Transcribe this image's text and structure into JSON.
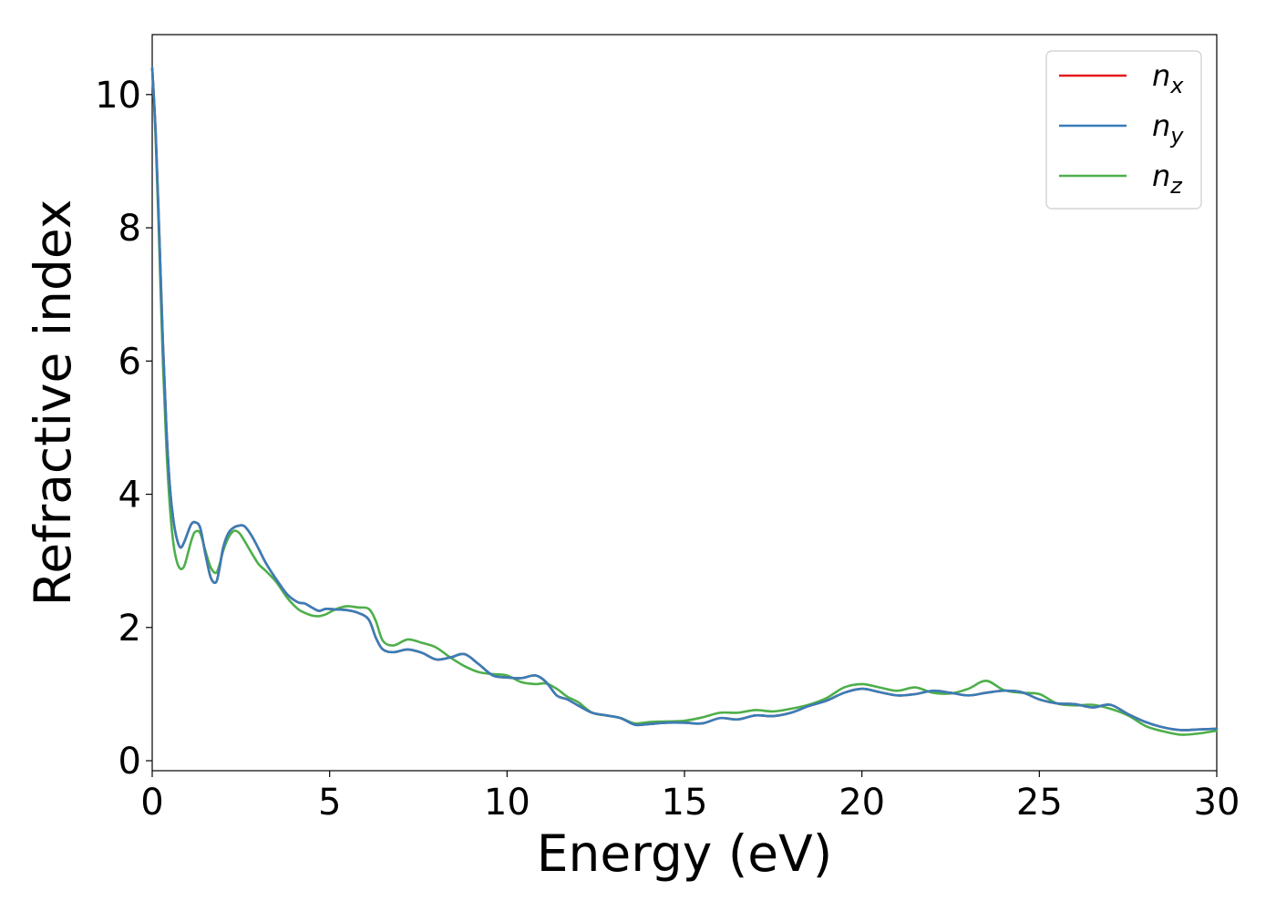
{
  "chart_data": {
    "type": "line",
    "xlabel": "Energy (eV)",
    "ylabel": "Refractive index",
    "xlim": [
      0,
      30
    ],
    "ylim": [
      -0.15,
      10.9
    ],
    "xticks": [
      0,
      5,
      10,
      15,
      20,
      25,
      30
    ],
    "yticks": [
      0,
      2,
      4,
      6,
      8,
      10
    ],
    "grid": false,
    "legend_position": "top-right",
    "legend": [
      {
        "base": "n",
        "sub": "x",
        "color": "#e41a1c"
      },
      {
        "base": "n",
        "sub": "y",
        "color": "#377eb8"
      },
      {
        "base": "n",
        "sub": "z",
        "color": "#4daf4a"
      }
    ],
    "series": [
      {
        "name": "n_x",
        "color": "#e41a1c",
        "x": [
          0,
          0.1,
          0.2,
          0.3,
          0.4,
          0.5,
          0.6,
          0.7,
          0.8,
          0.9,
          1.0,
          1.1,
          1.2,
          1.35,
          1.5,
          1.65,
          1.8,
          1.9,
          2.0,
          2.15,
          2.3,
          2.45,
          2.6,
          2.8,
          3.0,
          3.2,
          3.5,
          3.8,
          4.1,
          4.3,
          4.5,
          4.7,
          4.9,
          5.2,
          5.5,
          5.8,
          6.1,
          6.3,
          6.5,
          6.8,
          7.2,
          7.6,
          8.0,
          8.4,
          8.8,
          9.2,
          9.6,
          10.0,
          10.4,
          10.8,
          11.1,
          11.4,
          11.7,
          12.0,
          12.4,
          12.8,
          13.2,
          13.6,
          14.0,
          14.5,
          15.0,
          15.5,
          16.0,
          16.5,
          17.0,
          17.5,
          18.0,
          18.5,
          19.0,
          19.5,
          20.0,
          20.5,
          21.0,
          21.5,
          22.0,
          22.5,
          23.0,
          23.5,
          24.0,
          24.5,
          25.0,
          25.5,
          26.0,
          26.5,
          27.0,
          27.5,
          28.0,
          28.5,
          29.0,
          29.5,
          30.0
        ],
        "values": [
          10.4,
          9.4,
          7.9,
          6.3,
          5.0,
          4.1,
          3.6,
          3.32,
          3.2,
          3.28,
          3.42,
          3.55,
          3.58,
          3.5,
          3.1,
          2.75,
          2.68,
          2.9,
          3.2,
          3.42,
          3.5,
          3.53,
          3.52,
          3.38,
          3.18,
          2.97,
          2.72,
          2.5,
          2.38,
          2.36,
          2.3,
          2.25,
          2.28,
          2.27,
          2.26,
          2.22,
          2.12,
          1.85,
          1.67,
          1.63,
          1.67,
          1.62,
          1.52,
          1.55,
          1.6,
          1.45,
          1.28,
          1.25,
          1.24,
          1.28,
          1.18,
          0.98,
          0.92,
          0.83,
          0.72,
          0.68,
          0.64,
          0.54,
          0.55,
          0.57,
          0.57,
          0.56,
          0.64,
          0.62,
          0.68,
          0.67,
          0.72,
          0.82,
          0.9,
          1.02,
          1.08,
          1.03,
          0.98,
          1.0,
          1.05,
          1.02,
          0.98,
          1.02,
          1.05,
          1.03,
          0.92,
          0.86,
          0.85,
          0.8,
          0.84,
          0.7,
          0.58,
          0.5,
          0.46,
          0.47,
          0.48
        ]
      },
      {
        "name": "n_y",
        "color": "#377eb8",
        "x": [
          0,
          0.1,
          0.2,
          0.3,
          0.4,
          0.5,
          0.6,
          0.7,
          0.8,
          0.9,
          1.0,
          1.1,
          1.2,
          1.35,
          1.5,
          1.65,
          1.8,
          1.9,
          2.0,
          2.15,
          2.3,
          2.45,
          2.6,
          2.8,
          3.0,
          3.2,
          3.5,
          3.8,
          4.1,
          4.3,
          4.5,
          4.7,
          4.9,
          5.2,
          5.5,
          5.8,
          6.1,
          6.3,
          6.5,
          6.8,
          7.2,
          7.6,
          8.0,
          8.4,
          8.8,
          9.2,
          9.6,
          10.0,
          10.4,
          10.8,
          11.1,
          11.4,
          11.7,
          12.0,
          12.4,
          12.8,
          13.2,
          13.6,
          14.0,
          14.5,
          15.0,
          15.5,
          16.0,
          16.5,
          17.0,
          17.5,
          18.0,
          18.5,
          19.0,
          19.5,
          20.0,
          20.5,
          21.0,
          21.5,
          22.0,
          22.5,
          23.0,
          23.5,
          24.0,
          24.5,
          25.0,
          25.5,
          26.0,
          26.5,
          27.0,
          27.5,
          28.0,
          28.5,
          29.0,
          29.5,
          30.0
        ],
        "values": [
          10.4,
          9.4,
          7.9,
          6.3,
          5.0,
          4.1,
          3.6,
          3.32,
          3.2,
          3.28,
          3.42,
          3.55,
          3.58,
          3.5,
          3.1,
          2.75,
          2.68,
          2.9,
          3.2,
          3.42,
          3.5,
          3.53,
          3.52,
          3.38,
          3.18,
          2.97,
          2.72,
          2.5,
          2.38,
          2.36,
          2.3,
          2.25,
          2.28,
          2.27,
          2.26,
          2.22,
          2.12,
          1.85,
          1.67,
          1.63,
          1.67,
          1.62,
          1.52,
          1.55,
          1.6,
          1.45,
          1.28,
          1.25,
          1.24,
          1.28,
          1.18,
          0.98,
          0.92,
          0.83,
          0.72,
          0.68,
          0.64,
          0.54,
          0.55,
          0.57,
          0.57,
          0.56,
          0.64,
          0.62,
          0.68,
          0.67,
          0.72,
          0.82,
          0.9,
          1.02,
          1.08,
          1.03,
          0.98,
          1.0,
          1.05,
          1.02,
          0.98,
          1.02,
          1.05,
          1.03,
          0.92,
          0.86,
          0.85,
          0.8,
          0.84,
          0.7,
          0.58,
          0.5,
          0.46,
          0.47,
          0.48
        ]
      },
      {
        "name": "n_z",
        "color": "#4daf4a",
        "x": [
          0,
          0.1,
          0.2,
          0.3,
          0.4,
          0.5,
          0.6,
          0.7,
          0.8,
          0.9,
          1.0,
          1.1,
          1.2,
          1.35,
          1.5,
          1.65,
          1.8,
          1.9,
          2.0,
          2.15,
          2.3,
          2.45,
          2.6,
          2.8,
          3.0,
          3.2,
          3.5,
          3.8,
          4.1,
          4.3,
          4.5,
          4.7,
          4.9,
          5.2,
          5.5,
          5.8,
          6.1,
          6.3,
          6.5,
          6.8,
          7.2,
          7.6,
          8.0,
          8.4,
          8.8,
          9.2,
          9.6,
          10.0,
          10.4,
          10.8,
          11.1,
          11.4,
          11.7,
          12.0,
          12.4,
          12.8,
          13.2,
          13.6,
          14.0,
          14.5,
          15.0,
          15.5,
          16.0,
          16.5,
          17.0,
          17.5,
          18.0,
          18.5,
          19.0,
          19.5,
          20.0,
          20.5,
          21.0,
          21.5,
          22.0,
          22.5,
          23.0,
          23.5,
          24.0,
          24.5,
          25.0,
          25.5,
          26.0,
          26.5,
          27.0,
          27.5,
          28.0,
          28.5,
          29.0,
          29.5,
          30.0
        ],
        "values": [
          10.4,
          9.3,
          7.7,
          6.0,
          4.7,
          3.8,
          3.25,
          2.98,
          2.88,
          2.92,
          3.1,
          3.3,
          3.43,
          3.42,
          3.15,
          2.9,
          2.82,
          2.95,
          3.15,
          3.35,
          3.45,
          3.42,
          3.3,
          3.12,
          2.95,
          2.85,
          2.68,
          2.45,
          2.28,
          2.22,
          2.18,
          2.17,
          2.2,
          2.28,
          2.32,
          2.3,
          2.28,
          2.1,
          1.8,
          1.73,
          1.82,
          1.77,
          1.7,
          1.55,
          1.42,
          1.33,
          1.3,
          1.28,
          1.18,
          1.15,
          1.16,
          1.08,
          0.96,
          0.88,
          0.72,
          0.68,
          0.64,
          0.56,
          0.58,
          0.59,
          0.6,
          0.65,
          0.72,
          0.72,
          0.76,
          0.74,
          0.78,
          0.84,
          0.94,
          1.1,
          1.15,
          1.1,
          1.05,
          1.1,
          1.02,
          1.01,
          1.08,
          1.2,
          1.06,
          1.02,
          1.0,
          0.86,
          0.83,
          0.84,
          0.78,
          0.68,
          0.52,
          0.44,
          0.39,
          0.41,
          0.45
        ]
      }
    ]
  }
}
